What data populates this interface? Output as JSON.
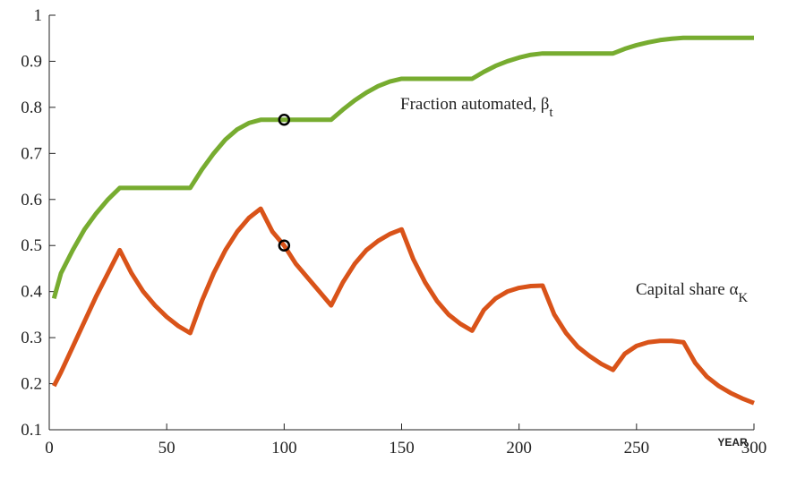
{
  "chart_data": {
    "type": "line",
    "x_label": "YEAR",
    "x": [
      2,
      5,
      10,
      15,
      20,
      25,
      30,
      35,
      40,
      45,
      50,
      55,
      60,
      65,
      70,
      75,
      80,
      85,
      90,
      95,
      100,
      105,
      110,
      115,
      120,
      125,
      130,
      135,
      140,
      145,
      150,
      155,
      160,
      165,
      170,
      175,
      180,
      185,
      190,
      195,
      200,
      205,
      210,
      215,
      220,
      225,
      230,
      235,
      240,
      245,
      250,
      255,
      260,
      265,
      270,
      275,
      280,
      285,
      290,
      295,
      300
    ],
    "series": [
      {
        "name": "Fraction automated, β",
        "name_sub": "t",
        "color": "#77ac30",
        "values": [
          0.385,
          0.44,
          0.49,
          0.535,
          0.57,
          0.6,
          0.625,
          0.625,
          0.625,
          0.625,
          0.625,
          0.625,
          0.625,
          0.665,
          0.7,
          0.73,
          0.752,
          0.766,
          0.773,
          0.773,
          0.773,
          0.773,
          0.773,
          0.773,
          0.773,
          0.795,
          0.815,
          0.832,
          0.846,
          0.856,
          0.862,
          0.862,
          0.862,
          0.862,
          0.862,
          0.862,
          0.862,
          0.877,
          0.89,
          0.9,
          0.908,
          0.914,
          0.917,
          0.917,
          0.917,
          0.917,
          0.917,
          0.917,
          0.917,
          0.927,
          0.935,
          0.941,
          0.946,
          0.949,
          0.951,
          0.951,
          0.951,
          0.951,
          0.951,
          0.951,
          0.951
        ]
      },
      {
        "name": "Capital share α",
        "name_sub": "K",
        "color": "#d95319",
        "values": [
          0.195,
          0.225,
          0.28,
          0.335,
          0.39,
          0.44,
          0.49,
          0.44,
          0.4,
          0.37,
          0.345,
          0.325,
          0.31,
          0.38,
          0.44,
          0.49,
          0.53,
          0.56,
          0.58,
          0.53,
          0.5,
          0.46,
          0.43,
          0.4,
          0.37,
          0.42,
          0.46,
          0.49,
          0.51,
          0.525,
          0.535,
          0.47,
          0.42,
          0.38,
          0.35,
          0.33,
          0.315,
          0.36,
          0.385,
          0.4,
          0.408,
          0.412,
          0.413,
          0.35,
          0.31,
          0.28,
          0.26,
          0.243,
          0.23,
          0.265,
          0.282,
          0.29,
          0.293,
          0.293,
          0.29,
          0.245,
          0.215,
          0.195,
          0.18,
          0.168,
          0.158
        ]
      }
    ],
    "markers": [
      {
        "x": 100,
        "y": 0.773
      },
      {
        "x": 100,
        "y": 0.5
      }
    ],
    "xlim": [
      0,
      300
    ],
    "xticks": [
      0,
      50,
      100,
      150,
      200,
      250,
      300
    ],
    "ylim": [
      0.1,
      1
    ],
    "yticks": [
      0.1,
      0.2,
      0.3,
      0.4,
      0.5,
      0.6,
      0.7,
      0.8,
      0.9,
      1
    ],
    "grid": false
  }
}
